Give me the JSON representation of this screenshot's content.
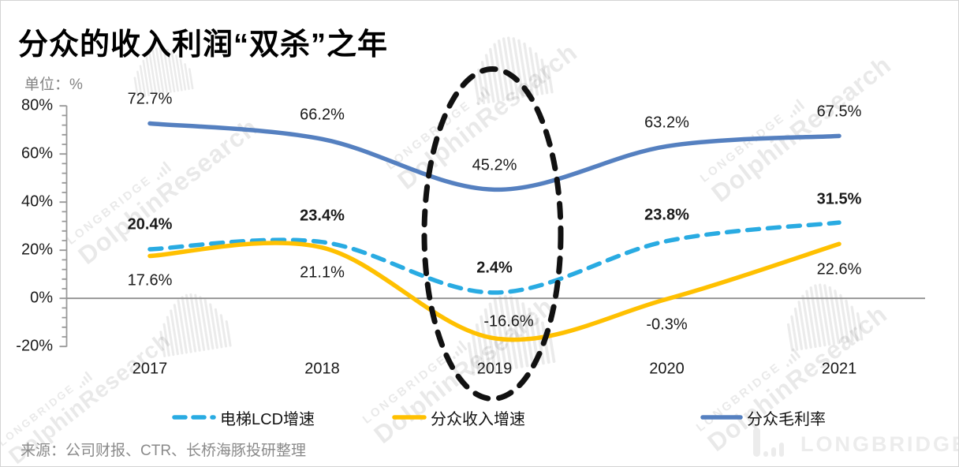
{
  "title": "分众的收入利润“双杀”之年",
  "unit_label": "单位：%",
  "source": "来源：公司财报、CTR、长桥海豚投研整理",
  "footer_logo": "LONGBRIDGE",
  "watermark": {
    "brand": "LONGBRIDGE",
    "name": "DolphinResearch"
  },
  "chart_data": {
    "type": "line",
    "x": [
      2017,
      2018,
      2019,
      2020,
      2021
    ],
    "x_labels": [
      "2017",
      "2018",
      "2019",
      "2020",
      "2021"
    ],
    "ylim": [
      -20,
      80
    ],
    "y_ticks": [
      {
        "v": 80,
        "label": "80%"
      },
      {
        "v": 60,
        "label": "60%"
      },
      {
        "v": 40,
        "label": "40%"
      },
      {
        "v": 20,
        "label": "20%"
      },
      {
        "v": 0,
        "label": "0%"
      },
      {
        "v": -20,
        "label": "-20%"
      }
    ],
    "grid": false,
    "legend_position": "bottom",
    "series": [
      {
        "key": "lcd-growth",
        "name": "电梯LCD增速",
        "style": "dashed",
        "color": "#29ABE2",
        "values": [
          20.4,
          23.4,
          2.4,
          23.8,
          31.5
        ],
        "labels": [
          "20.4%",
          "23.4%",
          "2.4%",
          "23.8%",
          "31.5%"
        ],
        "label_bold": true
      },
      {
        "key": "revenue-growth",
        "name": "分众收入增速",
        "style": "solid",
        "color": "#FFC000",
        "values": [
          17.6,
          21.1,
          -16.6,
          -0.3,
          22.6
        ],
        "labels": [
          "17.6%",
          "21.1%",
          "-16.6%",
          "-0.3%",
          "22.6%"
        ],
        "label_bold": false
      },
      {
        "key": "gross-margin",
        "name": "分众毛利率",
        "style": "solid",
        "color": "#5580C0",
        "values": [
          72.7,
          66.2,
          45.2,
          63.2,
          67.5
        ],
        "labels": [
          "72.7%",
          "66.2%",
          "45.2%",
          "63.2%",
          "67.5%"
        ],
        "label_bold": false
      }
    ],
    "annotation": {
      "type": "dashed-ellipse",
      "highlight_year": 2019,
      "color": "#111111"
    }
  }
}
